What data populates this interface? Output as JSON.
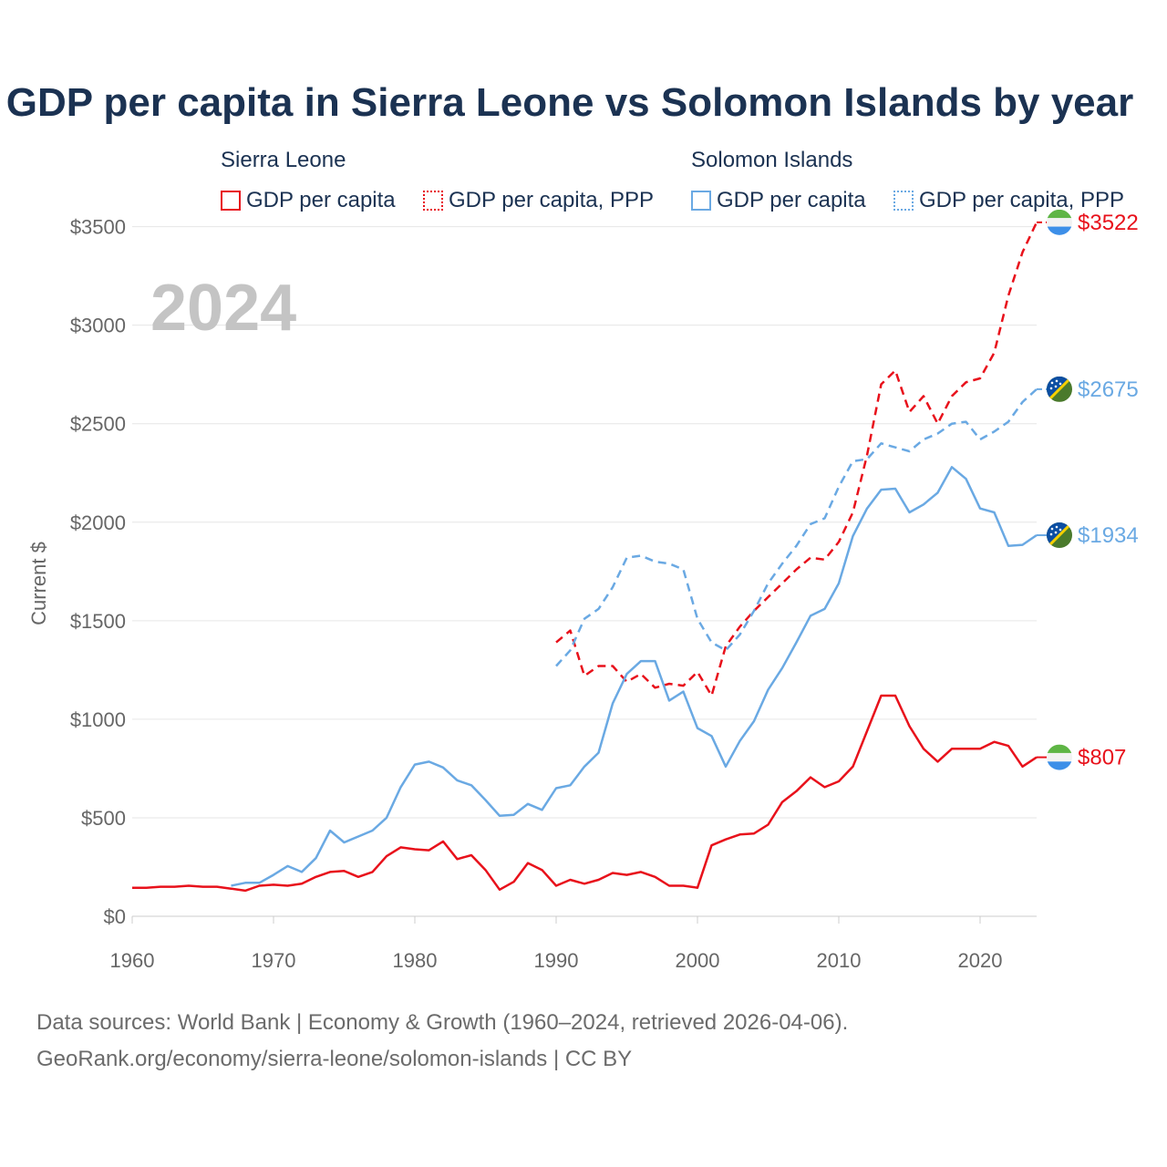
{
  "header": {
    "title": "GDP per capita in Sierra Leone vs Solomon Islands by year"
  },
  "legend": {
    "groups": [
      {
        "name": "Sierra Leone",
        "items": [
          {
            "label": "GDP per capita",
            "style": "solid",
            "color": "#e8111b"
          },
          {
            "label": "GDP per capita, PPP",
            "style": "dotted",
            "color": "#e8111b"
          }
        ]
      },
      {
        "name": "Solomon Islands",
        "items": [
          {
            "label": "GDP per capita",
            "style": "solid",
            "color": "#6aa9e3"
          },
          {
            "label": "GDP per capita, PPP",
            "style": "dotted",
            "color": "#6aa9e3"
          }
        ]
      }
    ]
  },
  "footer": {
    "line1": "Data sources: World Bank | Economy & Growth (1960–2024, retrieved 2026-04-06).",
    "line2": "GeoRank.org/economy/sierra-leone/solomon-islands | CC BY"
  },
  "chart_data": {
    "type": "line",
    "year_label": "2024",
    "ylabel": "Current $",
    "xlim": [
      1960,
      2024
    ],
    "ylim": [
      0,
      3600
    ],
    "xticks": [
      1960,
      1970,
      1980,
      1990,
      2000,
      2010,
      2020
    ],
    "yticks": [
      0,
      500,
      1000,
      1500,
      2000,
      2500,
      3000,
      3500
    ],
    "ytick_labels": [
      "$0",
      "$500",
      "$1000",
      "$1500",
      "$2000",
      "$2500",
      "$3000",
      "$3500"
    ],
    "end_labels": [
      {
        "text": "$3522",
        "series": "Sierra Leone GDP per capita, PPP",
        "color": "#e8111b",
        "flag": "sierra-leone"
      },
      {
        "text": "$2675",
        "series": "Solomon Islands GDP per capita, PPP",
        "color": "#6aa9e3",
        "flag": "solomon-islands"
      },
      {
        "text": "$1934",
        "series": "Solomon Islands GDP per capita",
        "color": "#6aa9e3",
        "flag": "solomon-islands"
      },
      {
        "text": "$807",
        "series": "Sierra Leone GDP per capita",
        "color": "#e8111b",
        "flag": "sierra-leone"
      }
    ],
    "series": [
      {
        "name": "Sierra Leone GDP per capita",
        "color": "#e8111b",
        "dash": "solid",
        "start_year": 1960,
        "values": [
          145,
          145,
          150,
          150,
          155,
          150,
          150,
          140,
          130,
          155,
          160,
          155,
          165,
          200,
          225,
          230,
          200,
          225,
          305,
          350,
          340,
          335,
          380,
          290,
          310,
          235,
          135,
          175,
          270,
          235,
          155,
          185,
          165,
          185,
          220,
          210,
          225,
          200,
          155,
          155,
          145,
          360,
          390,
          415,
          420,
          465,
          580,
          635,
          705,
          655,
          685,
          760,
          940,
          1120,
          1120,
          965,
          850,
          785,
          850,
          850,
          850,
          885,
          865,
          760,
          807
        ]
      },
      {
        "name": "Sierra Leone GDP per capita, PPP",
        "color": "#e8111b",
        "dash": "dashed",
        "start_year": 1990,
        "values": [
          1390,
          1450,
          1220,
          1270,
          1270,
          1190,
          1230,
          1160,
          1180,
          1170,
          1240,
          1120,
          1370,
          1470,
          1550,
          1620,
          1690,
          1760,
          1820,
          1810,
          1900,
          2050,
          2340,
          2700,
          2770,
          2560,
          2640,
          2500,
          2640,
          2710,
          2730,
          2860,
          3150,
          3370,
          3522
        ]
      },
      {
        "name": "Solomon Islands GDP per capita",
        "color": "#6aa9e3",
        "dash": "solid",
        "start_year": 1967,
        "values": [
          155,
          170,
          170,
          210,
          255,
          225,
          295,
          435,
          375,
          405,
          435,
          500,
          655,
          770,
          785,
          755,
          690,
          665,
          590,
          510,
          515,
          570,
          540,
          650,
          665,
          760,
          830,
          1080,
          1230,
          1295,
          1295,
          1095,
          1140,
          955,
          915,
          760,
          890,
          990,
          1150,
          1260,
          1390,
          1525,
          1560,
          1690,
          1930,
          2070,
          2165,
          2170,
          2050,
          2090,
          2150,
          2280,
          2220,
          2070,
          2050,
          1880,
          1885,
          1934
        ]
      },
      {
        "name": "Solomon Islands GDP per capita, PPP",
        "color": "#6aa9e3",
        "dash": "dashed",
        "start_year": 1990,
        "values": [
          1270,
          1350,
          1510,
          1560,
          1670,
          1820,
          1830,
          1800,
          1790,
          1760,
          1510,
          1390,
          1350,
          1430,
          1550,
          1690,
          1790,
          1880,
          1990,
          2020,
          2180,
          2310,
          2320,
          2400,
          2380,
          2360,
          2420,
          2450,
          2500,
          2510,
          2420,
          2460,
          2510,
          2610,
          2675
        ]
      }
    ]
  }
}
